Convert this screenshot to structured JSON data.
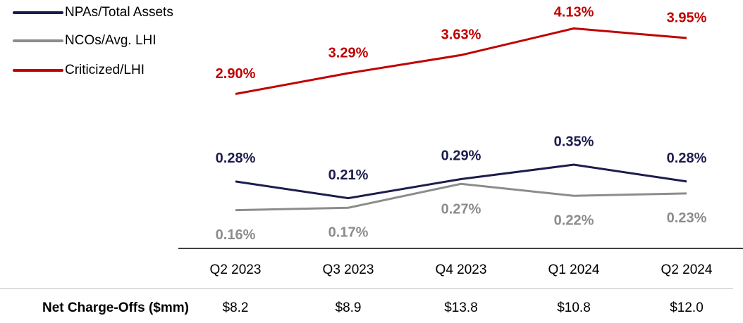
{
  "chart_data": {
    "type": "line",
    "categories": [
      "Q2 2023",
      "Q3 2023",
      "Q4 2023",
      "Q1 2024",
      "Q2 2024"
    ],
    "series": [
      {
        "name": "NPAs/Total Assets",
        "color": "#1c1c4c",
        "values": [
          0.28,
          0.21,
          0.29,
          0.35,
          0.28
        ],
        "value_labels": [
          "0.28%",
          "0.21%",
          "0.29%",
          "0.35%",
          "0.28%"
        ]
      },
      {
        "name": "NCOs/Avg. LHI",
        "color": "#8c8c8c",
        "values": [
          0.16,
          0.17,
          0.27,
          0.22,
          0.23
        ],
        "value_labels": [
          "0.16%",
          "0.17%",
          "0.27%",
          "0.22%",
          "0.23%"
        ]
      },
      {
        "name": "Criticized/LHI",
        "color": "#c00000",
        "axis": "y2",
        "values": [
          2.9,
          3.29,
          3.63,
          4.13,
          3.95
        ],
        "value_labels": [
          "2.90%",
          "3.29%",
          "3.63%",
          "4.13%",
          "3.95%"
        ]
      }
    ],
    "ylim": [
      0,
      0.98
    ],
    "y2lim": [
      0,
      4.4
    ],
    "legend": "upper left",
    "table": {
      "row_label": "Net Charge-Offs ($mm)",
      "values": [
        "$8.2",
        "$8.9",
        "$13.8",
        "$10.8",
        "$12.0"
      ]
    }
  }
}
